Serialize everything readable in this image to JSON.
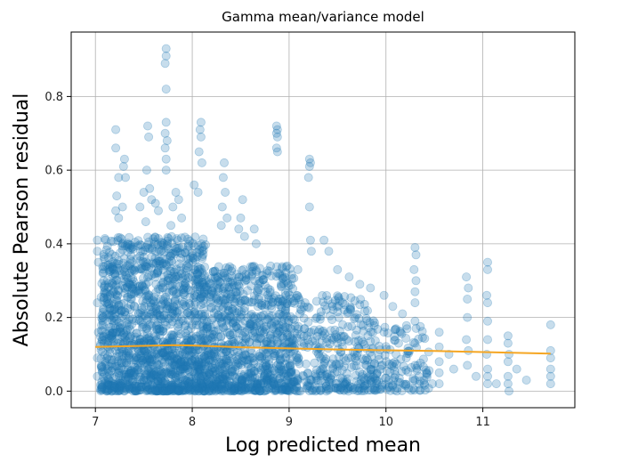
{
  "chart_data": {
    "type": "scatter",
    "title": "Gamma mean/variance model",
    "xlabel": "Log predicted mean",
    "ylabel": "Absolute Pearson residual",
    "xlim": [
      6.75,
      11.95
    ],
    "ylim": [
      -0.045,
      0.975
    ],
    "xticks": [
      7,
      8,
      9,
      10,
      11
    ],
    "yticks": [
      0.0,
      0.2,
      0.4,
      0.6,
      0.8
    ],
    "xtick_labels": [
      "7",
      "8",
      "9",
      "10",
      "11"
    ],
    "ytick_labels": [
      "0.0",
      "0.2",
      "0.4",
      "0.6",
      "0.8"
    ],
    "grid": true,
    "series": [
      {
        "type": "scatter",
        "color": "#1f77b4",
        "opacity": 0.25,
        "points": [
          [
            7.73,
            0.93
          ],
          [
            7.73,
            0.91
          ],
          [
            7.72,
            0.89
          ],
          [
            7.73,
            0.82
          ],
          [
            7.73,
            0.73
          ],
          [
            7.72,
            0.7
          ],
          [
            7.74,
            0.68
          ],
          [
            7.72,
            0.66
          ],
          [
            7.73,
            0.63
          ],
          [
            7.73,
            0.6
          ],
          [
            7.21,
            0.71
          ],
          [
            7.21,
            0.66
          ],
          [
            7.3,
            0.63
          ],
          [
            7.29,
            0.61
          ],
          [
            7.24,
            0.58
          ],
          [
            7.31,
            0.58
          ],
          [
            7.22,
            0.53
          ],
          [
            7.21,
            0.49
          ],
          [
            7.28,
            0.5
          ],
          [
            7.24,
            0.47
          ],
          [
            7.54,
            0.72
          ],
          [
            7.55,
            0.69
          ],
          [
            7.53,
            0.6
          ],
          [
            7.56,
            0.55
          ],
          [
            7.5,
            0.54
          ],
          [
            7.58,
            0.52
          ],
          [
            7.46,
            0.5
          ],
          [
            7.52,
            0.46
          ],
          [
            7.62,
            0.51
          ],
          [
            7.65,
            0.49
          ],
          [
            7.83,
            0.54
          ],
          [
            7.86,
            0.52
          ],
          [
            7.8,
            0.5
          ],
          [
            7.89,
            0.47
          ],
          [
            7.78,
            0.45
          ],
          [
            8.09,
            0.73
          ],
          [
            8.08,
            0.71
          ],
          [
            8.09,
            0.69
          ],
          [
            8.07,
            0.65
          ],
          [
            8.1,
            0.62
          ],
          [
            8.02,
            0.56
          ],
          [
            8.06,
            0.54
          ],
          [
            8.33,
            0.62
          ],
          [
            8.32,
            0.58
          ],
          [
            8.34,
            0.54
          ],
          [
            8.31,
            0.5
          ],
          [
            8.36,
            0.47
          ],
          [
            8.3,
            0.45
          ],
          [
            8.52,
            0.52
          ],
          [
            8.5,
            0.47
          ],
          [
            8.48,
            0.44
          ],
          [
            8.54,
            0.42
          ],
          [
            8.64,
            0.44
          ],
          [
            8.66,
            0.4
          ],
          [
            8.87,
            0.72
          ],
          [
            8.88,
            0.71
          ],
          [
            8.87,
            0.7
          ],
          [
            8.88,
            0.69
          ],
          [
            8.87,
            0.66
          ],
          [
            8.88,
            0.65
          ],
          [
            9.21,
            0.63
          ],
          [
            9.22,
            0.62
          ],
          [
            9.21,
            0.61
          ],
          [
            9.2,
            0.58
          ],
          [
            9.21,
            0.5
          ],
          [
            9.22,
            0.41
          ],
          [
            9.23,
            0.38
          ],
          [
            8.98,
            0.34
          ],
          [
            9.09,
            0.33
          ],
          [
            9.36,
            0.41
          ],
          [
            9.41,
            0.38
          ],
          [
            9.5,
            0.33
          ],
          [
            9.62,
            0.31
          ],
          [
            9.73,
            0.29
          ],
          [
            9.84,
            0.28
          ],
          [
            9.98,
            0.26
          ],
          [
            10.07,
            0.23
          ],
          [
            10.17,
            0.21
          ],
          [
            10.3,
            0.39
          ],
          [
            10.31,
            0.37
          ],
          [
            10.29,
            0.33
          ],
          [
            10.31,
            0.3
          ],
          [
            10.3,
            0.27
          ],
          [
            10.3,
            0.24
          ],
          [
            10.3,
            0.19
          ],
          [
            10.3,
            0.13
          ],
          [
            10.3,
            0.07
          ],
          [
            10.3,
            0.03
          ],
          [
            10.55,
            0.16
          ],
          [
            10.55,
            0.12
          ],
          [
            10.55,
            0.08
          ],
          [
            10.55,
            0.05
          ],
          [
            10.55,
            0.02
          ],
          [
            10.83,
            0.31
          ],
          [
            10.85,
            0.28
          ],
          [
            10.84,
            0.25
          ],
          [
            10.84,
            0.2
          ],
          [
            10.83,
            0.14
          ],
          [
            10.85,
            0.11
          ],
          [
            10.84,
            0.07
          ],
          [
            11.05,
            0.35
          ],
          [
            11.05,
            0.33
          ],
          [
            11.04,
            0.26
          ],
          [
            11.05,
            0.24
          ],
          [
            11.05,
            0.19
          ],
          [
            11.05,
            0.14
          ],
          [
            11.04,
            0.1
          ],
          [
            11.05,
            0.06
          ],
          [
            11.05,
            0.04
          ],
          [
            11.05,
            0.02
          ],
          [
            11.26,
            0.15
          ],
          [
            11.26,
            0.13
          ],
          [
            11.27,
            0.1
          ],
          [
            11.26,
            0.08
          ],
          [
            11.26,
            0.04
          ],
          [
            11.26,
            0.02
          ],
          [
            11.27,
            0.0
          ],
          [
            11.7,
            0.18
          ],
          [
            11.7,
            0.11
          ],
          [
            11.7,
            0.09
          ],
          [
            11.7,
            0.06
          ],
          [
            11.7,
            0.04
          ],
          [
            11.7,
            0.02
          ],
          [
            7.02,
            0.41
          ],
          [
            7.02,
            0.38
          ],
          [
            7.03,
            0.35
          ],
          [
            7.02,
            0.24
          ],
          [
            7.03,
            0.16
          ],
          [
            7.02,
            0.09
          ],
          [
            7.02,
            0.04
          ],
          [
            9.03,
            0.24
          ],
          [
            9.11,
            0.21
          ],
          [
            9.16,
            0.17
          ],
          [
            9.3,
            0.16
          ],
          [
            9.45,
            0.14
          ],
          [
            9.55,
            0.12
          ],
          [
            9.68,
            0.09
          ],
          [
            9.8,
            0.07
          ],
          [
            9.91,
            0.05
          ],
          [
            10.03,
            0.03
          ],
          [
            10.13,
            0.13
          ],
          [
            10.21,
            0.09
          ],
          [
            10.42,
            0.05
          ],
          [
            10.48,
            0.02
          ],
          [
            10.65,
            0.1
          ],
          [
            10.7,
            0.06
          ],
          [
            10.93,
            0.04
          ],
          [
            11.14,
            0.02
          ],
          [
            11.35,
            0.06
          ],
          [
            11.45,
            0.03
          ]
        ]
      },
      {
        "type": "line",
        "color": "#f5a623",
        "points": [
          [
            7.0,
            0.12
          ],
          [
            7.5,
            0.123
          ],
          [
            7.8,
            0.125
          ],
          [
            8.0,
            0.124
          ],
          [
            8.5,
            0.119
          ],
          [
            9.0,
            0.116
          ],
          [
            9.5,
            0.113
          ],
          [
            10.0,
            0.111
          ],
          [
            10.5,
            0.109
          ],
          [
            11.0,
            0.106
          ],
          [
            11.5,
            0.103
          ],
          [
            11.7,
            0.102
          ]
        ]
      }
    ],
    "dense_regions": [
      {
        "x_range": [
          7.05,
          8.15
        ],
        "y_range": [
          0.0,
          0.42
        ],
        "count": 1500
      },
      {
        "x_range": [
          8.15,
          9.05
        ],
        "y_range": [
          0.0,
          0.34
        ],
        "count": 900
      },
      {
        "x_range": [
          9.05,
          9.9
        ],
        "y_range": [
          0.0,
          0.26
        ],
        "count": 350
      },
      {
        "x_range": [
          9.9,
          10.45
        ],
        "y_range": [
          0.0,
          0.18
        ],
        "count": 120
      }
    ]
  }
}
